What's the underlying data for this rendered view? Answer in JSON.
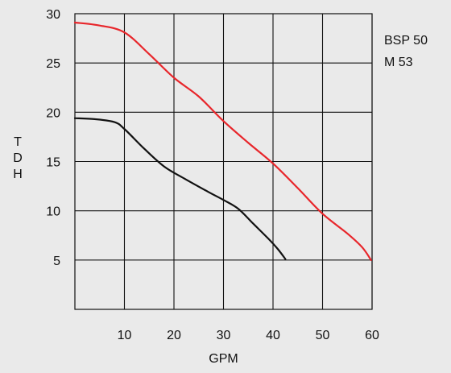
{
  "chart_data": {
    "type": "line",
    "title": "",
    "xlabel": "GPM",
    "ylabel": "TDH",
    "xlim": [
      0,
      60
    ],
    "ylim": [
      0,
      30
    ],
    "x_ticks": [
      10,
      20,
      30,
      40,
      50,
      60
    ],
    "y_ticks": [
      5,
      10,
      15,
      20,
      25,
      30
    ],
    "grid": true,
    "legend_position": "right",
    "series": [
      {
        "name": "BSP 50",
        "color": "#e8262b",
        "x": [
          0,
          5,
          10,
          15,
          20,
          25,
          30,
          35,
          40,
          45,
          50,
          55,
          58,
          59.8
        ],
        "y": [
          29.1,
          28.8,
          28.1,
          25.9,
          23.5,
          21.6,
          19.1,
          16.9,
          14.8,
          12.3,
          9.7,
          7.7,
          6.3,
          5.0
        ]
      },
      {
        "name": "M 53",
        "color": "#111111",
        "x": [
          0,
          4,
          8,
          10,
          14,
          18,
          22,
          27,
          30,
          33,
          36,
          39,
          41,
          42.5
        ],
        "y": [
          19.4,
          19.3,
          19.0,
          18.3,
          16.3,
          14.5,
          13.3,
          11.9,
          11.1,
          10.2,
          8.7,
          7.2,
          6.1,
          5.1
        ]
      }
    ]
  }
}
